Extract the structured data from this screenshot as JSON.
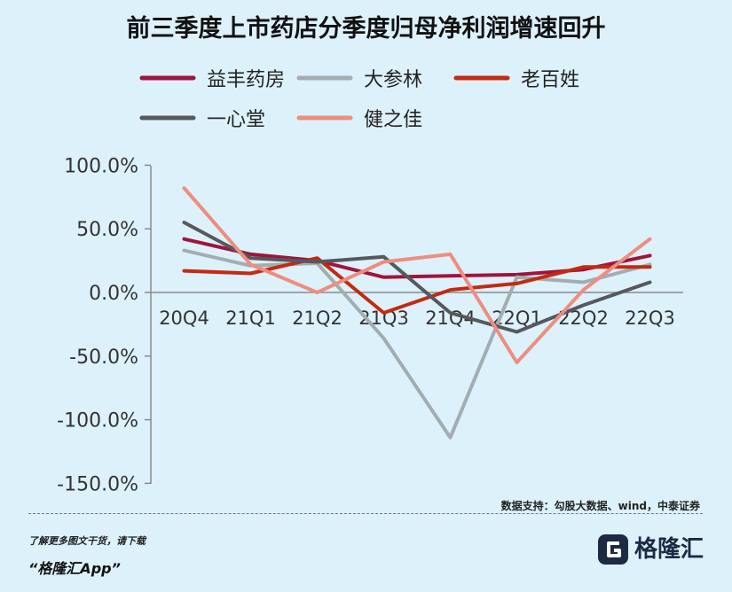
{
  "chart_data": {
    "type": "line",
    "title": "前三季度上市药店分季度归母净利润增速回升",
    "categories": [
      "20Q4",
      "21Q1",
      "21Q2",
      "21Q3",
      "21Q4",
      "22Q1",
      "22Q2",
      "22Q3"
    ],
    "y_ticks": [
      "100.0%",
      "50.0%",
      "0.0%",
      "-50.0%",
      "-100.0%",
      "-150.0%"
    ],
    "ylim": [
      -150,
      100
    ],
    "grid": false,
    "legend_position": "top",
    "series": [
      {
        "name": "益丰药房",
        "color": "#a0143c",
        "values": [
          42,
          30,
          25,
          12,
          13,
          14,
          18,
          29
        ]
      },
      {
        "name": "大参林",
        "color": "#a3adb1",
        "values": [
          33,
          21,
          23,
          -36,
          -114,
          12,
          8,
          22
        ]
      },
      {
        "name": "老百姓",
        "color": "#c22a12",
        "values": [
          17,
          15,
          27,
          -16,
          2,
          7,
          20,
          20
        ]
      },
      {
        "name": "一心堂",
        "color": "#55595c",
        "values": [
          55,
          27,
          24,
          28,
          -16,
          -31,
          -10,
          8
        ]
      },
      {
        "name": "健之佳",
        "color": "#ec8e80",
        "values": [
          82,
          22,
          0,
          24,
          30,
          -55,
          2,
          42
        ]
      }
    ]
  },
  "source": "数据支持：勾股大数据、wind，中泰证券",
  "footer": {
    "hint": "了解更多图文干货，请下载",
    "app": "“格隆汇App”",
    "brand": "格隆汇"
  }
}
